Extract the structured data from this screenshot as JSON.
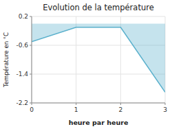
{
  "chart_data": {
    "type": "area",
    "title": "Evolution de la température",
    "xlabel": "heure par heure",
    "ylabel": "Température en °C",
    "x": [
      0,
      1,
      2,
      3
    ],
    "values": [
      -0.5,
      -0.1,
      -0.1,
      -1.9
    ],
    "color": "#5ab0cc",
    "xlim": [
      0,
      3
    ],
    "ylim": [
      -2.2,
      0.2
    ],
    "xticks": [
      0,
      1,
      2,
      3
    ],
    "yticks": [
      0.2,
      -0.6,
      -1.4,
      -2.2
    ],
    "grid": true
  }
}
